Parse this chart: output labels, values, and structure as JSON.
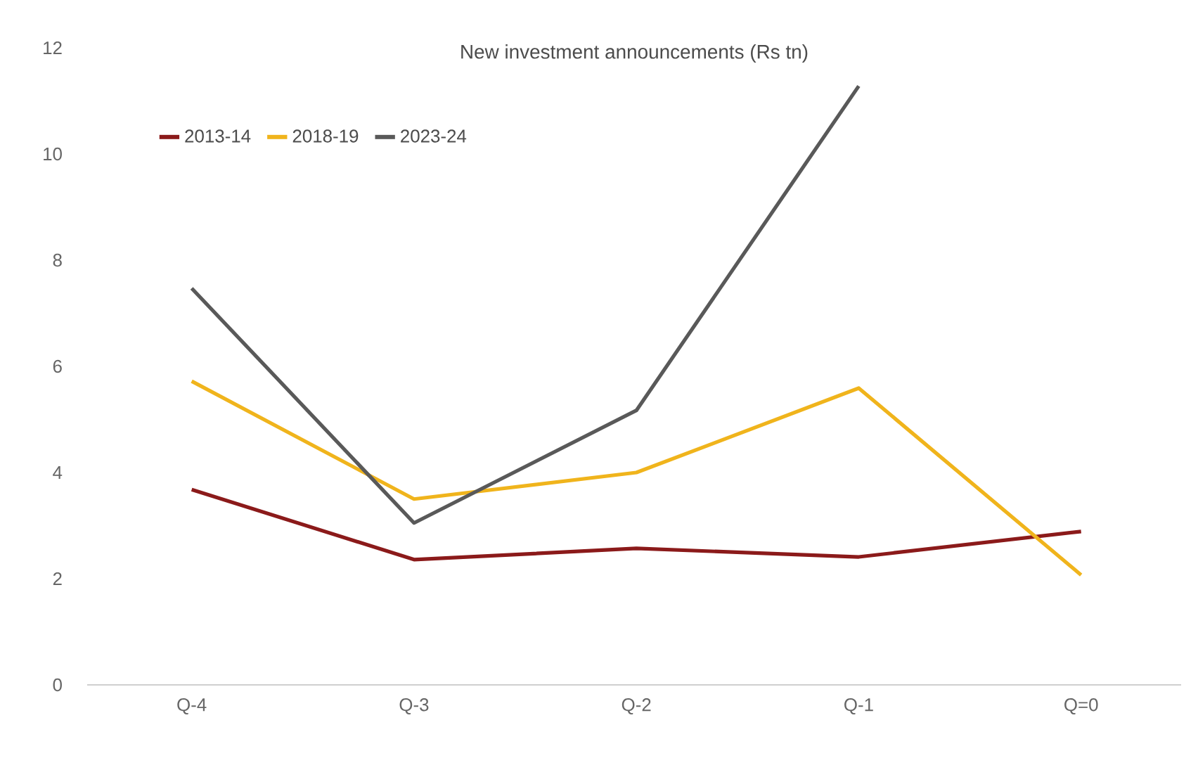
{
  "chart_data": {
    "type": "line",
    "title": "New investment announcements (Rs tn)",
    "categories": [
      "Q-4",
      "Q-3",
      "Q-2",
      "Q-1",
      "Q=0"
    ],
    "series": [
      {
        "name": "2013-14",
        "color": "#8b1a1a",
        "values": [
          3.68,
          2.36,
          2.57,
          2.41,
          2.89
        ]
      },
      {
        "name": "2018-19",
        "color": "#f0b41c",
        "values": [
          5.72,
          3.5,
          4.0,
          5.59,
          2.07
        ]
      },
      {
        "name": "2023-24",
        "color": "#595959",
        "values": [
          7.47,
          3.05,
          5.17,
          11.28,
          null
        ]
      }
    ],
    "ylim": [
      0,
      12
    ],
    "yticks": [
      0,
      2,
      4,
      6,
      8,
      10,
      12
    ],
    "grid": false,
    "legend": "top left",
    "marker": "none",
    "line_style": "solid"
  }
}
